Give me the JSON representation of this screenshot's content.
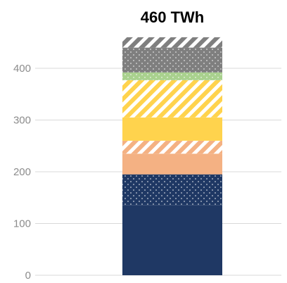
{
  "chart_data": {
    "type": "bar",
    "stacked": true,
    "categories": [
      ""
    ],
    "total_label": "460 TWh",
    "ylim": [
      0,
      460
    ],
    "yticks": [
      0,
      100,
      200,
      300,
      400
    ],
    "ytick_labels": [
      "0",
      "100",
      "200",
      "300",
      "400"
    ],
    "grid": true,
    "segments": [
      {
        "value": 135,
        "color": "#1f3864",
        "pattern": "solid"
      },
      {
        "value": 60,
        "color": "#1f3864",
        "pattern": "dots"
      },
      {
        "value": 40,
        "color": "#f4b183",
        "pattern": "solid"
      },
      {
        "value": 25,
        "color": "#f4b183",
        "pattern": "diagonal"
      },
      {
        "value": 45,
        "color": "#ffd34d",
        "pattern": "solid"
      },
      {
        "value": 72,
        "color": "#ffd34d",
        "pattern": "diagonal"
      },
      {
        "value": 15,
        "color": "#a9d18e",
        "pattern": "dots"
      },
      {
        "value": 48,
        "color": "#7f7f7f",
        "pattern": "dots"
      },
      {
        "value": 20,
        "color": "#7f7f7f",
        "pattern": "diagonal"
      }
    ]
  }
}
